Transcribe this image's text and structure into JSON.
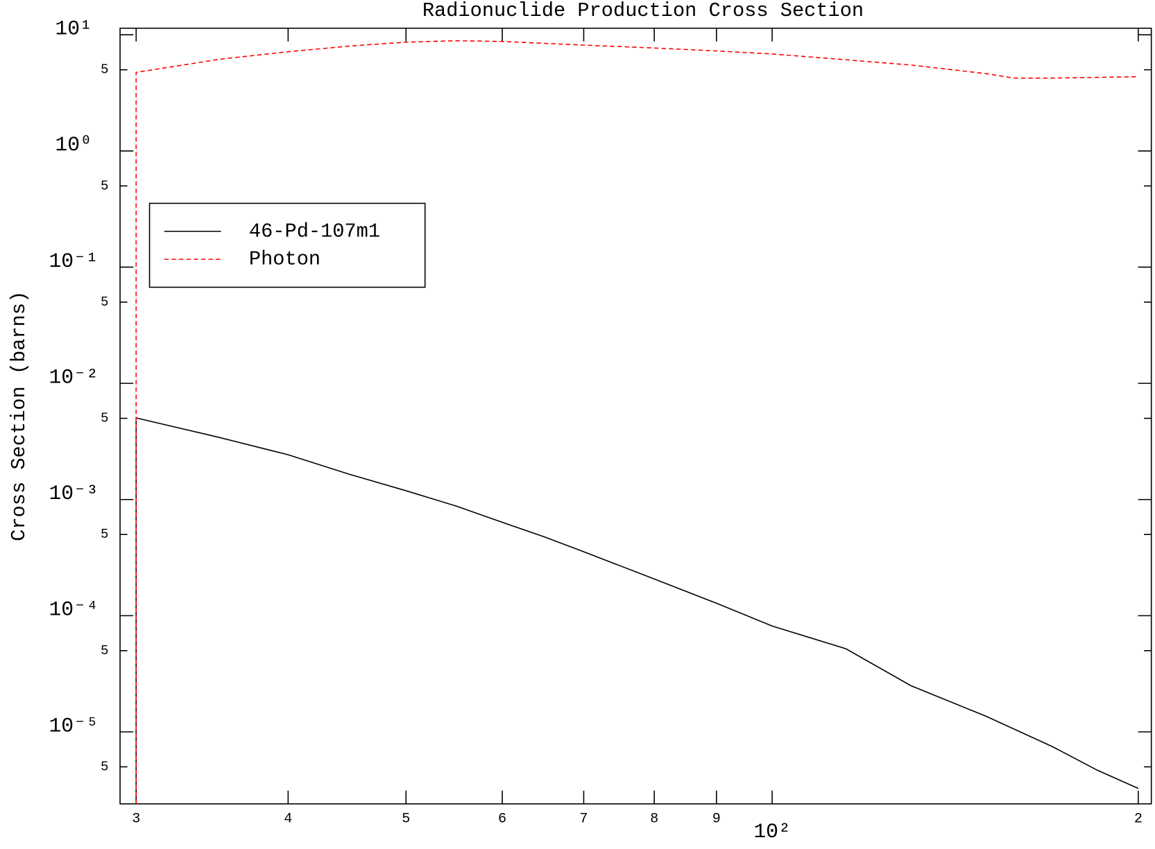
{
  "chart_data": {
    "type": "line",
    "title": "Radionuclide Production Cross Section",
    "y_label": "Cross Section (barns)",
    "x_scale": "log",
    "y_scale": "log",
    "xlim": [
      29.1,
      205
    ],
    "ylim": [
      2.4e-06,
      11.4
    ],
    "xticks": [
      {
        "value": 30,
        "label": "3"
      },
      {
        "value": 40,
        "label": "4"
      },
      {
        "value": 50,
        "label": "5"
      },
      {
        "value": 60,
        "label": "6"
      },
      {
        "value": 70,
        "label": "7"
      },
      {
        "value": 80,
        "label": "8"
      },
      {
        "value": 90,
        "label": "9"
      },
      {
        "value": 100,
        "label": "10²"
      },
      {
        "value": 200,
        "label": "2"
      }
    ],
    "yticks": [
      {
        "value": 10,
        "label": "10¹"
      },
      5,
      {
        "value": 1,
        "label": "10⁰"
      },
      {
        "value": 0.5,
        "label": "5"
      },
      {
        "value": 0.1,
        "label": "10⁻¹"
      },
      {
        "value": 0.05,
        "label": "5"
      },
      {
        "value": 0.01,
        "label": "10⁻²"
      },
      {
        "value": 0.005,
        "label": "5"
      },
      {
        "value": 0.001,
        "label": "10⁻³"
      },
      {
        "value": 0.0005,
        "label": "5"
      },
      {
        "value": 0.0001,
        "label": "10⁻⁴"
      },
      {
        "value": 5e-05,
        "label": "5"
      },
      {
        "value": 1e-05,
        "label": "10⁻⁵"
      },
      {
        "value": 5e-06,
        "label": "5"
      }
    ],
    "legend": "upper left",
    "series": [
      {
        "name": "46-Pd-107m1",
        "color": "#000000",
        "dash": false,
        "x": [
          30,
          30,
          35,
          40,
          45,
          50,
          55,
          60,
          65,
          70,
          80,
          90,
          100,
          115,
          130,
          150,
          170,
          185,
          200
        ],
        "values": [
          2.4e-06,
          0.00504,
          0.00345,
          0.00243,
          0.00164,
          0.00119,
          0.000877,
          0.000637,
          0.000476,
          0.000355,
          0.000207,
          0.000128,
          8.15e-05,
          5.19e-05,
          2.5e-05,
          1.36e-05,
          7.47e-06,
          4.69e-06,
          3.26e-06
        ]
      },
      {
        "name": "Photon",
        "color": "#ff0000",
        "dash": true,
        "x": [
          30,
          30,
          35.2,
          40,
          45.2,
          50,
          55,
          60,
          70,
          80,
          90,
          100,
          115,
          130,
          150,
          158,
          170,
          200
        ],
        "values": [
          2.4e-06,
          4.75,
          6.18,
          7.15,
          8.04,
          8.64,
          8.9,
          8.77,
          8.15,
          7.7,
          7.26,
          6.84,
          6.1,
          5.5,
          4.63,
          4.24,
          4.24,
          4.36
        ]
      }
    ]
  }
}
